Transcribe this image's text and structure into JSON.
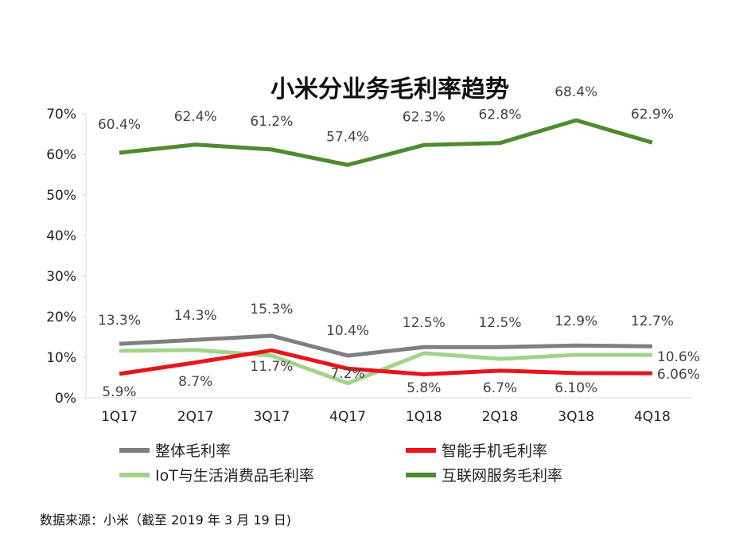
{
  "chart_data": {
    "type": "line",
    "title": "小米分业务毛利率趋势",
    "xlabel": "",
    "ylabel": "",
    "categories": [
      "1Q17",
      "2Q17",
      "3Q17",
      "4Q17",
      "1Q18",
      "2Q18",
      "3Q18",
      "4Q18"
    ],
    "ylim": [
      0,
      70
    ],
    "yticks": [
      "0%",
      "10%",
      "20%",
      "30%",
      "40%",
      "50%",
      "60%",
      "70%"
    ],
    "grid": false,
    "legend": "bottom",
    "series": [
      {
        "name": "整体毛利率",
        "color": "#7f7f7f",
        "values": [
          13.3,
          14.3,
          15.3,
          10.4,
          12.5,
          12.5,
          12.9,
          12.7
        ],
        "labels": [
          "13.3%",
          "14.3%",
          "15.3%",
          "10.4%",
          "12.5%",
          "12.5%",
          "12.9%",
          "12.7%"
        ]
      },
      {
        "name": "智能手机毛利率",
        "color": "#e8141b",
        "values": [
          5.9,
          8.7,
          11.7,
          7.2,
          5.8,
          6.7,
          6.1,
          6.06
        ],
        "labels": [
          "5.9%",
          "8.7%",
          "11.7%",
          "7.2%",
          "5.8%",
          "6.7%",
          "6.10%",
          "6.06%"
        ]
      },
      {
        "name": "IoT与生活消费品毛利率",
        "color": "#a3d38b",
        "values": [
          11.6,
          11.8,
          10.4,
          3.6,
          11.0,
          9.6,
          10.6,
          10.6
        ],
        "labels": [
          "",
          "",
          "",
          "",
          "",
          "",
          "",
          "10.6%"
        ]
      },
      {
        "name": "互联网服务毛利率",
        "color": "#4e8a2f",
        "values": [
          60.4,
          62.4,
          61.2,
          57.4,
          62.3,
          62.8,
          68.4,
          62.9
        ],
        "labels": [
          "60.4%",
          "62.4%",
          "61.2%",
          "57.4%",
          "62.3%",
          "62.8%",
          "68.4%",
          "62.9%"
        ]
      }
    ]
  },
  "source": "数据来源：小米（截至 2019 年 3 月 19 日)"
}
